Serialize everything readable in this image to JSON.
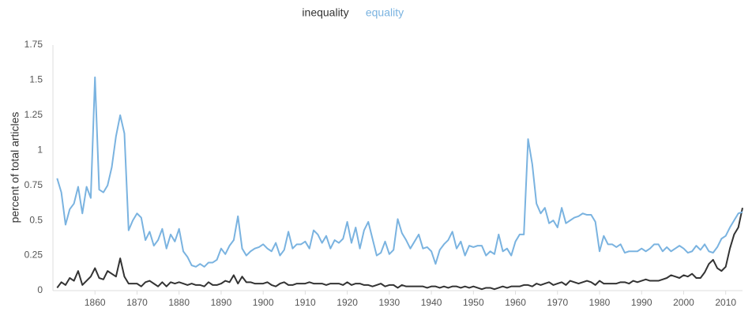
{
  "chart_data": {
    "type": "line",
    "y_label": "percent of total articles",
    "x": [
      1851,
      1852,
      1853,
      1854,
      1855,
      1856,
      1857,
      1858,
      1859,
      1860,
      1861,
      1862,
      1863,
      1864,
      1865,
      1866,
      1867,
      1868,
      1869,
      1870,
      1871,
      1872,
      1873,
      1874,
      1875,
      1876,
      1877,
      1878,
      1879,
      1880,
      1881,
      1882,
      1883,
      1884,
      1885,
      1886,
      1887,
      1888,
      1889,
      1890,
      1891,
      1892,
      1893,
      1894,
      1895,
      1896,
      1897,
      1898,
      1899,
      1900,
      1901,
      1902,
      1903,
      1904,
      1905,
      1906,
      1907,
      1908,
      1909,
      1910,
      1911,
      1912,
      1913,
      1914,
      1915,
      1916,
      1917,
      1918,
      1919,
      1920,
      1921,
      1922,
      1923,
      1924,
      1925,
      1926,
      1927,
      1928,
      1929,
      1930,
      1931,
      1932,
      1933,
      1934,
      1935,
      1936,
      1937,
      1938,
      1939,
      1940,
      1941,
      1942,
      1943,
      1944,
      1945,
      1946,
      1947,
      1948,
      1949,
      1950,
      1951,
      1952,
      1953,
      1954,
      1955,
      1956,
      1957,
      1958,
      1959,
      1960,
      1961,
      1962,
      1963,
      1964,
      1965,
      1966,
      1967,
      1968,
      1969,
      1970,
      1971,
      1972,
      1973,
      1974,
      1975,
      1976,
      1977,
      1978,
      1979,
      1980,
      1981,
      1982,
      1983,
      1984,
      1985,
      1986,
      1987,
      1988,
      1989,
      1990,
      1991,
      1992,
      1993,
      1994,
      1995,
      1996,
      1997,
      1998,
      1999,
      2000,
      2001,
      2002,
      2003,
      2004,
      2005,
      2006,
      2007,
      2008,
      2009,
      2010,
      2011,
      2012,
      2013,
      2014
    ],
    "series": [
      {
        "name": "inequality",
        "color": "#333333",
        "values": [
          0.02,
          0.06,
          0.04,
          0.09,
          0.07,
          0.14,
          0.04,
          0.07,
          0.1,
          0.16,
          0.09,
          0.08,
          0.14,
          0.12,
          0.1,
          0.23,
          0.1,
          0.05,
          0.05,
          0.05,
          0.03,
          0.06,
          0.07,
          0.05,
          0.03,
          0.06,
          0.03,
          0.06,
          0.05,
          0.06,
          0.05,
          0.04,
          0.05,
          0.04,
          0.04,
          0.03,
          0.06,
          0.04,
          0.04,
          0.05,
          0.07,
          0.06,
          0.11,
          0.05,
          0.1,
          0.06,
          0.06,
          0.05,
          0.05,
          0.05,
          0.06,
          0.04,
          0.03,
          0.05,
          0.06,
          0.04,
          0.04,
          0.05,
          0.05,
          0.05,
          0.06,
          0.05,
          0.05,
          0.05,
          0.04,
          0.05,
          0.05,
          0.05,
          0.04,
          0.06,
          0.04,
          0.05,
          0.05,
          0.04,
          0.04,
          0.03,
          0.04,
          0.05,
          0.03,
          0.04,
          0.04,
          0.02,
          0.04,
          0.03,
          0.03,
          0.03,
          0.03,
          0.03,
          0.02,
          0.03,
          0.03,
          0.02,
          0.03,
          0.02,
          0.03,
          0.03,
          0.02,
          0.03,
          0.02,
          0.03,
          0.02,
          0.01,
          0.02,
          0.02,
          0.01,
          0.02,
          0.03,
          0.02,
          0.03,
          0.03,
          0.03,
          0.04,
          0.04,
          0.03,
          0.05,
          0.04,
          0.05,
          0.06,
          0.04,
          0.05,
          0.06,
          0.04,
          0.07,
          0.06,
          0.05,
          0.06,
          0.07,
          0.06,
          0.04,
          0.07,
          0.05,
          0.05,
          0.05,
          0.05,
          0.06,
          0.06,
          0.05,
          0.07,
          0.06,
          0.07,
          0.08,
          0.07,
          0.07,
          0.07,
          0.08,
          0.09,
          0.11,
          0.1,
          0.09,
          0.11,
          0.1,
          0.12,
          0.09,
          0.09,
          0.13,
          0.19,
          0.22,
          0.16,
          0.14,
          0.17,
          0.3,
          0.4,
          0.45,
          0.59
        ]
      },
      {
        "name": "equality",
        "color": "#7ab3e0",
        "values": [
          0.8,
          0.7,
          0.47,
          0.58,
          0.62,
          0.74,
          0.55,
          0.74,
          0.66,
          1.52,
          0.72,
          0.7,
          0.75,
          0.88,
          1.1,
          1.25,
          1.12,
          0.43,
          0.5,
          0.55,
          0.52,
          0.36,
          0.42,
          0.32,
          0.36,
          0.44,
          0.3,
          0.4,
          0.35,
          0.44,
          0.28,
          0.24,
          0.18,
          0.17,
          0.19,
          0.17,
          0.2,
          0.2,
          0.22,
          0.3,
          0.26,
          0.32,
          0.36,
          0.53,
          0.3,
          0.25,
          0.28,
          0.3,
          0.31,
          0.33,
          0.3,
          0.28,
          0.34,
          0.25,
          0.29,
          0.42,
          0.3,
          0.33,
          0.33,
          0.35,
          0.3,
          0.43,
          0.4,
          0.34,
          0.39,
          0.3,
          0.36,
          0.34,
          0.37,
          0.49,
          0.34,
          0.45,
          0.3,
          0.43,
          0.49,
          0.37,
          0.25,
          0.27,
          0.35,
          0.26,
          0.29,
          0.51,
          0.41,
          0.36,
          0.3,
          0.35,
          0.4,
          0.3,
          0.31,
          0.28,
          0.19,
          0.29,
          0.33,
          0.36,
          0.42,
          0.3,
          0.35,
          0.25,
          0.32,
          0.31,
          0.32,
          0.32,
          0.25,
          0.28,
          0.26,
          0.4,
          0.28,
          0.3,
          0.25,
          0.35,
          0.4,
          0.4,
          1.08,
          0.9,
          0.62,
          0.55,
          0.59,
          0.48,
          0.5,
          0.45,
          0.59,
          0.48,
          0.5,
          0.52,
          0.53,
          0.55,
          0.54,
          0.54,
          0.49,
          0.28,
          0.39,
          0.33,
          0.33,
          0.31,
          0.33,
          0.27,
          0.28,
          0.28,
          0.28,
          0.3,
          0.28,
          0.3,
          0.33,
          0.33,
          0.28,
          0.31,
          0.28,
          0.3,
          0.32,
          0.3,
          0.27,
          0.28,
          0.32,
          0.29,
          0.33,
          0.28,
          0.27,
          0.31,
          0.37,
          0.39,
          0.45,
          0.5,
          0.55,
          0.56
        ]
      }
    ],
    "xlim": [
      1850,
      2014
    ],
    "xticks": [
      1860,
      1870,
      1880,
      1890,
      1900,
      1910,
      1920,
      1930,
      1940,
      1950,
      1960,
      1970,
      1980,
      1990,
      2000,
      2010
    ],
    "ylim": [
      0,
      1.75
    ],
    "yticks": [
      0,
      0.25,
      0.5,
      0.75,
      1,
      1.25,
      1.5,
      1.75
    ],
    "grid": false
  }
}
